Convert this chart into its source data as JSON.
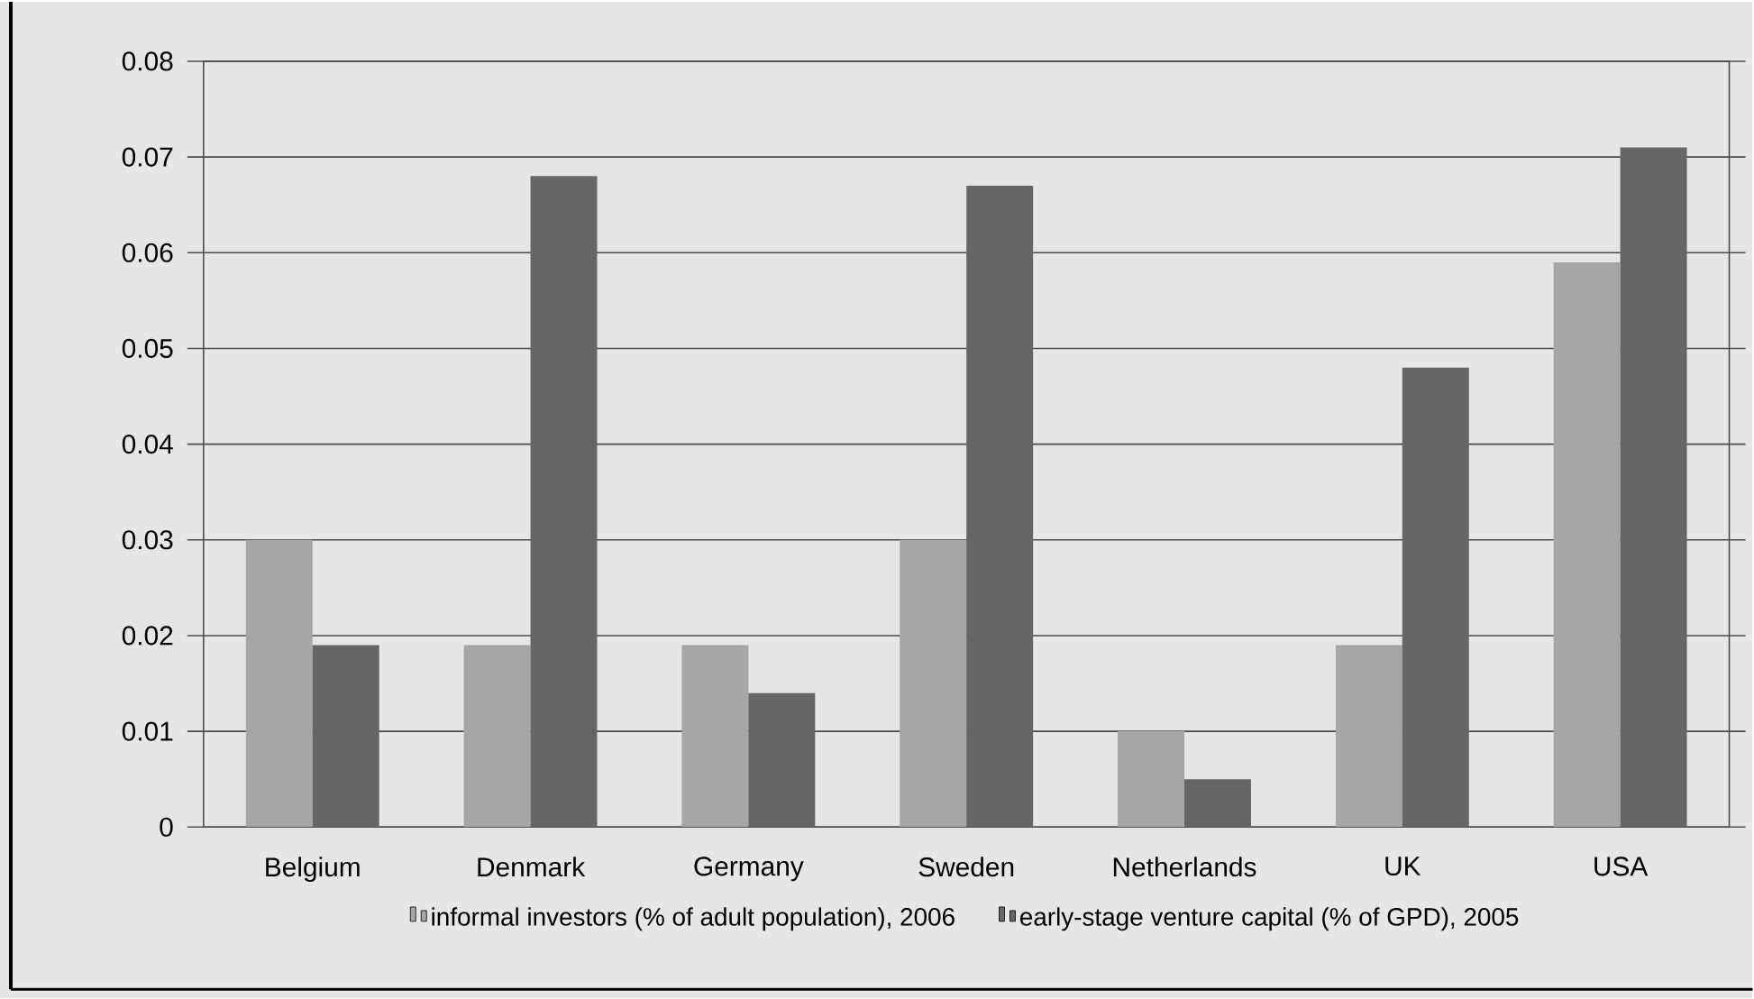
{
  "chart_data": {
    "type": "bar",
    "categories": [
      "Belgium",
      "Denmark",
      "Germany",
      "Sweden",
      "Netherlands",
      "UK",
      "USA"
    ],
    "series": [
      {
        "name": "informal investors (% of adult population), 2006",
        "color": "#a6a6a6",
        "values": [
          0.03,
          0.019,
          0.019,
          0.03,
          0.01,
          0.019,
          0.059
        ]
      },
      {
        "name": "early-stage venture capital (% of GPD), 2005",
        "color": "#666666",
        "values": [
          0.019,
          0.068,
          0.014,
          0.067,
          0.005,
          0.048,
          0.071
        ]
      }
    ],
    "ylim": [
      0,
      0.08
    ],
    "yticks": [
      0,
      0.01,
      0.02,
      0.03,
      0.04,
      0.05,
      0.06,
      0.07,
      0.08
    ],
    "grid": "y",
    "legend": "bottom"
  }
}
